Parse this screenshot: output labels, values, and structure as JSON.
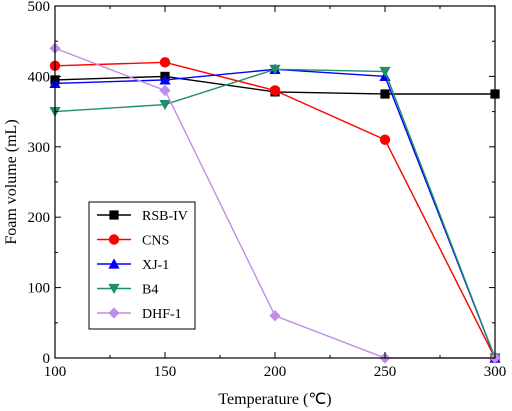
{
  "chart_data": {
    "type": "line",
    "xlabel": "Temperature (℃)",
    "ylabel": "Foam volume (mL)",
    "xlim": [
      100,
      300
    ],
    "ylim": [
      0,
      500
    ],
    "x_ticks": [
      "100",
      "150",
      "200",
      "250",
      "300"
    ],
    "y_ticks": [
      "0",
      "100",
      "200",
      "300",
      "400",
      "500"
    ],
    "grid": false,
    "legend_position": "lower-left",
    "x": [
      100,
      150,
      200,
      250,
      300
    ],
    "series": [
      {
        "name": "RSB-IV",
        "color": "#000000",
        "marker": "square",
        "values": [
          395,
          400,
          378,
          375,
          375
        ]
      },
      {
        "name": "CNS",
        "color": "#ff0000",
        "marker": "circle",
        "values": [
          415,
          420,
          380,
          310,
          0
        ]
      },
      {
        "name": "XJ-1",
        "color": "#0000ff",
        "marker": "triangle-up",
        "values": [
          390,
          395,
          410,
          400,
          0
        ]
      },
      {
        "name": "B4",
        "color": "#1f8f6a",
        "marker": "triangle-down",
        "values": [
          350,
          360,
          410,
          407,
          0
        ]
      },
      {
        "name": "DHF-1",
        "color": "#c08ee8",
        "marker": "diamond",
        "values": [
          440,
          380,
          60,
          0,
          0
        ]
      }
    ]
  }
}
